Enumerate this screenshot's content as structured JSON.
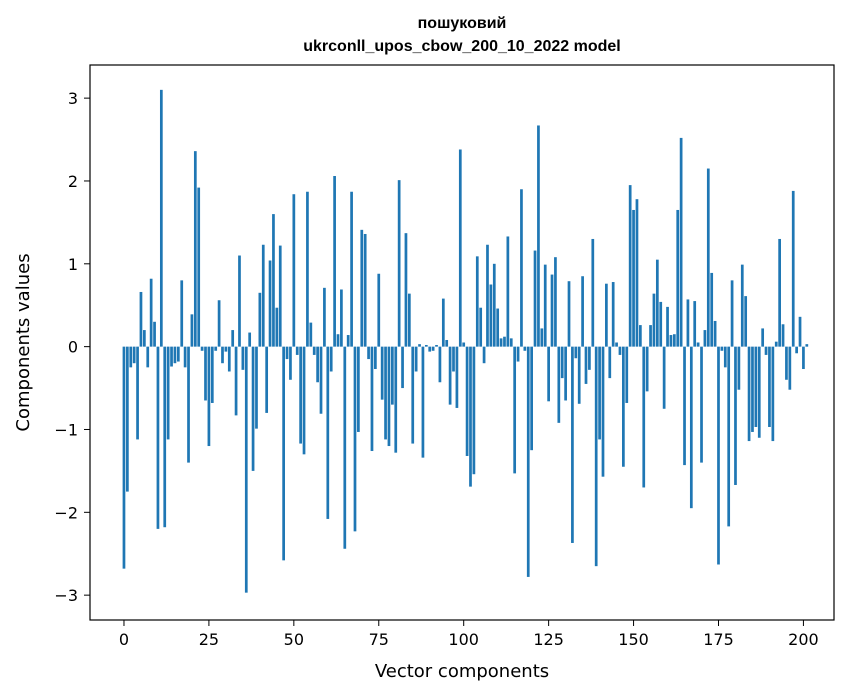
{
  "chart_data": {
    "type": "bar",
    "title_line1": "пошуковий",
    "title_line2": "ukrconll_upos_cbow_200_10_2022 model",
    "xlabel": "Vector components",
    "ylabel": "Components values",
    "xlim": [
      -10,
      209
    ],
    "ylim": [
      -3.3,
      3.4
    ],
    "x_ticks": [
      0,
      25,
      50,
      75,
      100,
      125,
      150,
      175,
      200
    ],
    "x_tick_labels": [
      "0",
      "25",
      "50",
      "75",
      "100",
      "125",
      "150",
      "175",
      "200"
    ],
    "y_ticks": [
      -3,
      -2,
      -1,
      0,
      1,
      2,
      3
    ],
    "y_tick_labels": [
      "−3",
      "−2",
      "−1",
      "0",
      "1",
      "2",
      "3"
    ],
    "grid": false,
    "bar_color": "#1f77b4",
    "values": [
      -2.68,
      -1.75,
      -0.25,
      -0.2,
      -1.12,
      0.66,
      0.2,
      -0.25,
      0.82,
      0.3,
      -2.2,
      3.1,
      -2.18,
      -1.12,
      -0.24,
      -0.2,
      -0.18,
      0.8,
      -0.25,
      -1.4,
      0.39,
      2.36,
      1.92,
      -0.05,
      -0.65,
      -1.2,
      -0.68,
      -0.05,
      0.56,
      -0.2,
      -0.06,
      -0.3,
      0.2,
      -0.83,
      1.1,
      -0.28,
      -2.97,
      0.17,
      -1.5,
      -0.99,
      0.65,
      1.23,
      -0.8,
      1.04,
      1.6,
      0.47,
      1.22,
      -2.58,
      -0.15,
      -0.4,
      1.84,
      -0.1,
      -1.17,
      -1.3,
      1.87,
      0.29,
      -0.1,
      -0.43,
      -0.81,
      0.71,
      -2.08,
      -0.3,
      2.06,
      0.15,
      0.69,
      -2.44,
      0.14,
      1.87,
      -2.23,
      -1.03,
      1.41,
      1.36,
      -0.15,
      -1.26,
      -0.27,
      0.88,
      -0.64,
      -1.12,
      -1.2,
      -0.7,
      -1.28,
      2.01,
      -0.5,
      1.37,
      0.64,
      -1.17,
      -0.3,
      0.03,
      -1.34,
      0.02,
      -0.06,
      -0.05,
      0.02,
      -0.43,
      0.58,
      0.08,
      -0.7,
      -0.3,
      -0.74,
      2.38,
      0.05,
      -1.32,
      -1.69,
      -1.54,
      1.09,
      0.47,
      -0.2,
      1.23,
      0.75,
      1.0,
      0.46,
      0.1,
      0.12,
      1.33,
      0.1,
      -1.53,
      -0.18,
      1.9,
      -0.05,
      -2.78,
      -1.25,
      1.16,
      2.67,
      0.22,
      0.99,
      -0.66,
      0.87,
      1.08,
      -0.92,
      -0.38,
      -0.65,
      0.79,
      -2.37,
      -0.14,
      -0.69,
      0.85,
      -0.45,
      -0.28,
      1.3,
      -2.65,
      -1.12,
      -1.57,
      0.76,
      -0.38,
      0.78,
      0.05,
      -0.1,
      -1.45,
      -0.68,
      1.95,
      1.65,
      1.78,
      0.26,
      -1.7,
      -0.54,
      0.26,
      0.64,
      1.05,
      0.54,
      -0.75,
      0.48,
      0.14,
      0.15,
      1.65,
      2.52,
      -1.43,
      0.57,
      -1.95,
      0.55,
      0.05,
      -1.4,
      0.2,
      2.15,
      0.89,
      0.31,
      -2.63,
      -0.05,
      -0.25,
      -2.17,
      0.8,
      -1.67,
      -0.52,
      0.99,
      0.61,
      -1.14,
      -1.03,
      -0.97,
      -1.1,
      0.22,
      -0.1,
      -0.97,
      -1.14,
      0.06,
      1.3,
      0.27,
      -0.4,
      -0.52,
      1.88,
      -0.08,
      0.36,
      -0.27,
      0.03
    ]
  }
}
